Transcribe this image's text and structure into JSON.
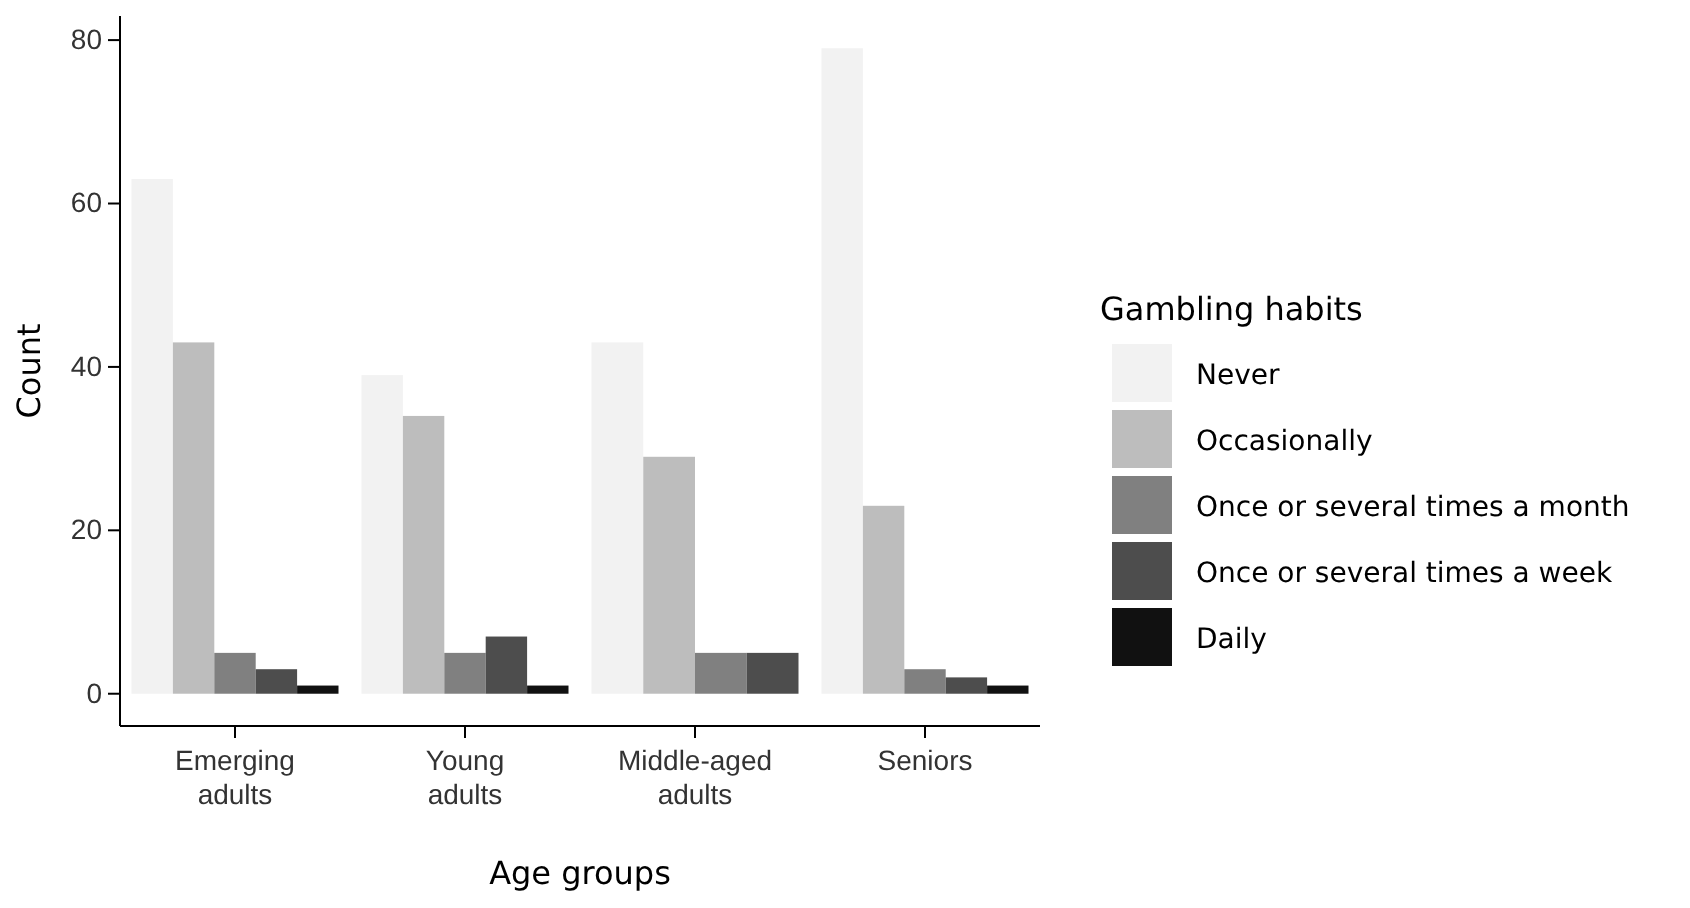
{
  "chart_data": {
    "type": "bar",
    "xlabel": "Age groups",
    "ylabel": "Count",
    "legend_title": "Gambling habits",
    "categories": [
      "Emerging adults",
      "Young adults",
      "Middle-aged adults",
      "Seniors"
    ],
    "series": [
      {
        "name": "Never",
        "color": "#f2f2f2",
        "values": [
          63,
          39,
          43,
          79
        ]
      },
      {
        "name": "Occasionally",
        "color": "#bdbdbd",
        "values": [
          43,
          34,
          29,
          23
        ]
      },
      {
        "name": "Once or several times a month",
        "color": "#808080",
        "values": [
          5,
          5,
          5,
          3
        ]
      },
      {
        "name": "Once or several times a week",
        "color": "#4d4d4d",
        "values": [
          3,
          7,
          5,
          2
        ]
      },
      {
        "name": "Daily",
        "color": "#111111",
        "values": [
          1,
          1,
          null,
          1
        ]
      }
    ],
    "ylim": [
      -3.95,
      82.95
    ],
    "yticks": [
      0,
      20,
      40,
      60,
      80
    ],
    "legend": "right",
    "grid": false
  }
}
